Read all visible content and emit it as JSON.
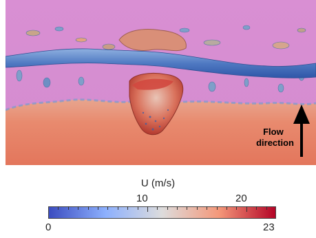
{
  "figure": {
    "flow_label_line1": "Flow",
    "flow_label_line2": "direction"
  },
  "colorbar": {
    "title": "U (m/s)",
    "min_label": "0",
    "max_label": "23",
    "mid_label_1": "10",
    "mid_label_2": "20",
    "min": 0,
    "max": 23,
    "colors": [
      "#3b4cc0",
      "#8db0fe",
      "#dddcdc",
      "#f4987a",
      "#b40426"
    ]
  },
  "colors": {
    "background": "#d88fd2",
    "tube": "#5f86c8"
  }
}
